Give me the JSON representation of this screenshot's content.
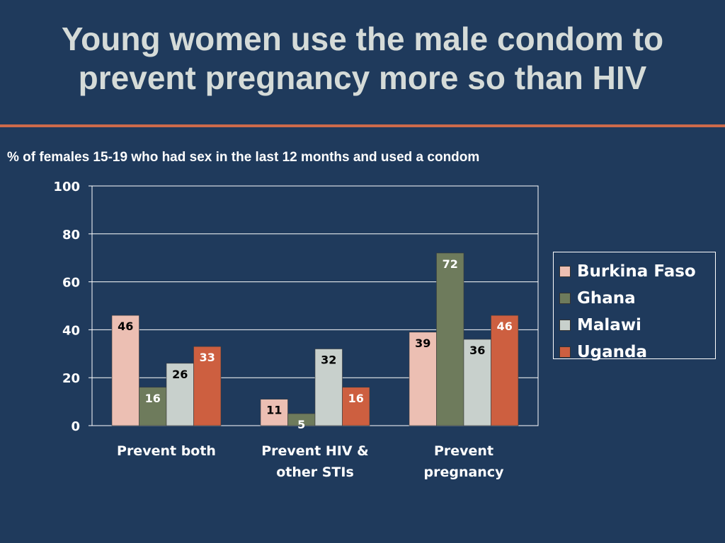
{
  "slide": {
    "title_lines": [
      "Young women use the male condom to",
      "prevent pregnancy more so than HIV"
    ],
    "subtitle": "% of females 15-19 who had sex in the last 12 months and used a condom"
  },
  "colors": {
    "background": "#1f3a5c",
    "divider": "#cd6a4b",
    "title": "#d5dbd8"
  },
  "chart_data": {
    "type": "bar",
    "categories": [
      [
        "Prevent both"
      ],
      [
        "Prevent HIV &",
        "other STIs"
      ],
      [
        "Prevent",
        "pregnancy"
      ]
    ],
    "series": [
      {
        "name": "Burkina Faso",
        "color": "#ecbfb3",
        "values": [
          46,
          11,
          39
        ]
      },
      {
        "name": "Ghana",
        "color": "#6e7b5c",
        "values": [
          16,
          5,
          72
        ]
      },
      {
        "name": "Malawi",
        "color": "#c8d0cc",
        "values": [
          26,
          32,
          36
        ]
      },
      {
        "name": "Uganda",
        "color": "#cd5f40",
        "values": [
          33,
          16,
          46
        ]
      }
    ],
    "y_ticks": [
      0,
      20,
      40,
      60,
      80,
      100
    ],
    "ylim": [
      0,
      100
    ],
    "grid": true,
    "legend_position": "right",
    "title": "% of females 15-19 who had sex in the last 12 months and used a condom",
    "xlabel": "",
    "ylabel": ""
  }
}
